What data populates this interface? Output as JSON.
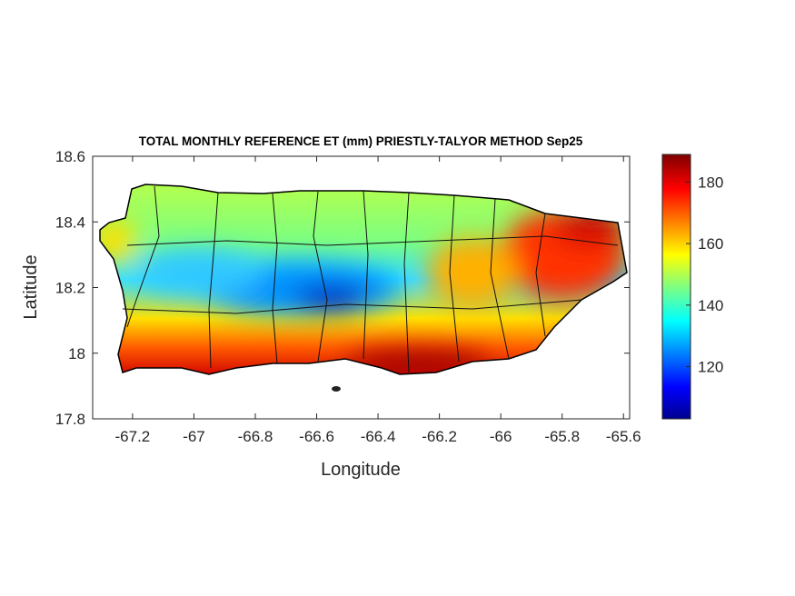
{
  "chart_data": {
    "type": "heatmap",
    "title": "TOTAL MONTHLY REFERENCE ET (mm) PRIESTLY-TALYOR METHOD Sep25",
    "xlabel": "Longitude",
    "ylabel": "Latitude",
    "xlim": [
      -67.33,
      -65.58
    ],
    "ylim": [
      17.8,
      18.6
    ],
    "xticks": [
      -67.2,
      -67,
      -66.8,
      -66.6,
      -66.4,
      -66.2,
      -66,
      -65.8,
      -65.6
    ],
    "yticks": [
      17.8,
      18,
      18.2,
      18.4,
      18.6
    ],
    "colorbar": {
      "colormap": "jet",
      "range": [
        103,
        189
      ],
      "ticks": [
        120,
        140,
        160,
        180
      ]
    },
    "regions": [
      {
        "area": "south coast",
        "value_range": [
          170,
          189
        ]
      },
      {
        "area": "central interior (Cordillera)",
        "value_range": [
          110,
          135
        ]
      },
      {
        "area": "northeast / east",
        "value_range": [
          170,
          189
        ]
      },
      {
        "area": "north coast / west",
        "value_range": [
          145,
          160
        ]
      }
    ]
  }
}
